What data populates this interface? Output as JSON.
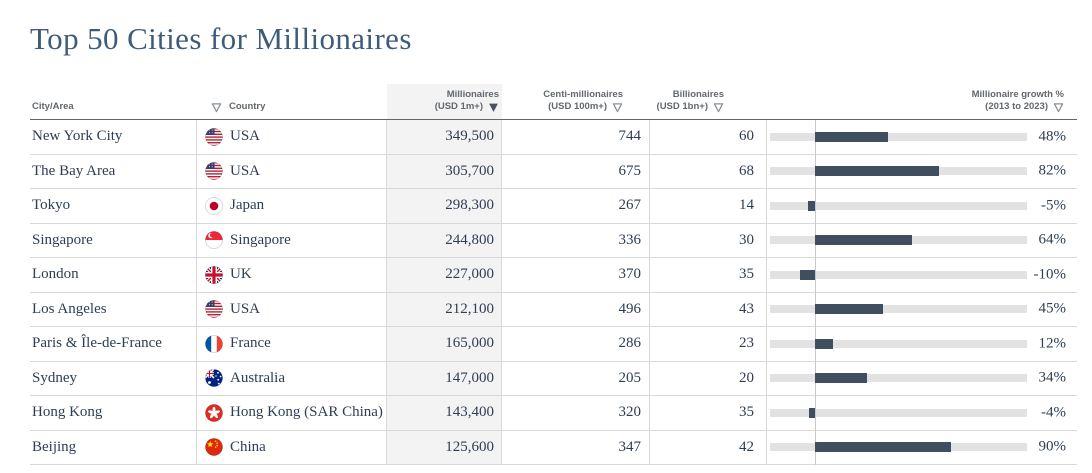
{
  "title": "Top 50 Cities for Millionaires",
  "columns": {
    "city": "City/Area",
    "country": "Country",
    "millionaires_l1": "Millionaires",
    "millionaires_l2": "(USD 1m+)",
    "centi_l1": "Centi-millionaires",
    "centi_l2": "(USD 100m+)",
    "billionaires_l1": "Billionaires",
    "billionaires_l2": "(USD 1bn+)",
    "growth_l1": "Millionaire growth %",
    "growth_l2": "(2013 to 2023)"
  },
  "sort": {
    "column": "millionaires",
    "direction": "desc"
  },
  "growth_axis": {
    "min": -30,
    "max": 140
  },
  "rows": [
    {
      "city": "New York City",
      "country": "USA",
      "flag": "us",
      "millionaires": "349,500",
      "centi": "744",
      "billionaires": "60",
      "growth": 48,
      "growth_label": "48%"
    },
    {
      "city": "The Bay Area",
      "country": "USA",
      "flag": "us",
      "millionaires": "305,700",
      "centi": "675",
      "billionaires": "68",
      "growth": 82,
      "growth_label": "82%"
    },
    {
      "city": "Tokyo",
      "country": "Japan",
      "flag": "jp",
      "millionaires": "298,300",
      "centi": "267",
      "billionaires": "14",
      "growth": -5,
      "growth_label": "-5%"
    },
    {
      "city": "Singapore",
      "country": "Singapore",
      "flag": "sg",
      "millionaires": "244,800",
      "centi": "336",
      "billionaires": "30",
      "growth": 64,
      "growth_label": "64%"
    },
    {
      "city": "London",
      "country": "UK",
      "flag": "gb",
      "millionaires": "227,000",
      "centi": "370",
      "billionaires": "35",
      "growth": -10,
      "growth_label": "-10%"
    },
    {
      "city": "Los Angeles",
      "country": "USA",
      "flag": "us",
      "millionaires": "212,100",
      "centi": "496",
      "billionaires": "43",
      "growth": 45,
      "growth_label": "45%"
    },
    {
      "city": "Paris & Île-de-France",
      "country": "France",
      "flag": "fr",
      "millionaires": "165,000",
      "centi": "286",
      "billionaires": "23",
      "growth": 12,
      "growth_label": "12%"
    },
    {
      "city": "Sydney",
      "country": "Australia",
      "flag": "au",
      "millionaires": "147,000",
      "centi": "205",
      "billionaires": "20",
      "growth": 34,
      "growth_label": "34%"
    },
    {
      "city": "Hong Kong",
      "country": "Hong Kong (SAR China)",
      "flag": "hk",
      "millionaires": "143,400",
      "centi": "320",
      "billionaires": "35",
      "growth": -4,
      "growth_label": "-4%"
    },
    {
      "city": "Beijing",
      "country": "China",
      "flag": "cn",
      "millionaires": "125,600",
      "centi": "347",
      "billionaires": "42",
      "growth": 90,
      "growth_label": "90%"
    }
  ],
  "colors": {
    "title": "#3e5c7a",
    "text": "#2d3e54",
    "header_text": "#63686d",
    "bar": "#3f4f60",
    "bar_track": "#e2e2e2",
    "zero_line": "#c8c8c8",
    "row_border": "#d8d8d8",
    "header_border": "#5f6670",
    "highlight_col_bg": "#f3f3f3"
  },
  "chart_data": {
    "type": "table",
    "title": "Top 50 Cities for Millionaires",
    "columns": [
      "City/Area",
      "Country",
      "Millionaires (USD 1m+)",
      "Centi-millionaires (USD 100m+)",
      "Billionaires (USD 1bn+)",
      "Millionaire growth % (2013 to 2023)"
    ],
    "sorted_by": "Millionaires (USD 1m+), descending",
    "growth_bar_axis_range": [
      -30,
      140
    ],
    "rows": [
      [
        "New York City",
        "USA",
        349500,
        744,
        60,
        48
      ],
      [
        "The Bay Area",
        "USA",
        305700,
        675,
        68,
        82
      ],
      [
        "Tokyo",
        "Japan",
        298300,
        267,
        14,
        -5
      ],
      [
        "Singapore",
        "Singapore",
        244800,
        336,
        30,
        64
      ],
      [
        "London",
        "UK",
        227000,
        370,
        35,
        -10
      ],
      [
        "Los Angeles",
        "USA",
        212100,
        496,
        43,
        45
      ],
      [
        "Paris & Île-de-France",
        "France",
        165000,
        286,
        23,
        12
      ],
      [
        "Sydney",
        "Australia",
        147000,
        205,
        20,
        34
      ],
      [
        "Hong Kong",
        "Hong Kong (SAR China)",
        143400,
        320,
        35,
        -4
      ],
      [
        "Beijing",
        "China",
        125600,
        347,
        42,
        90
      ]
    ]
  }
}
